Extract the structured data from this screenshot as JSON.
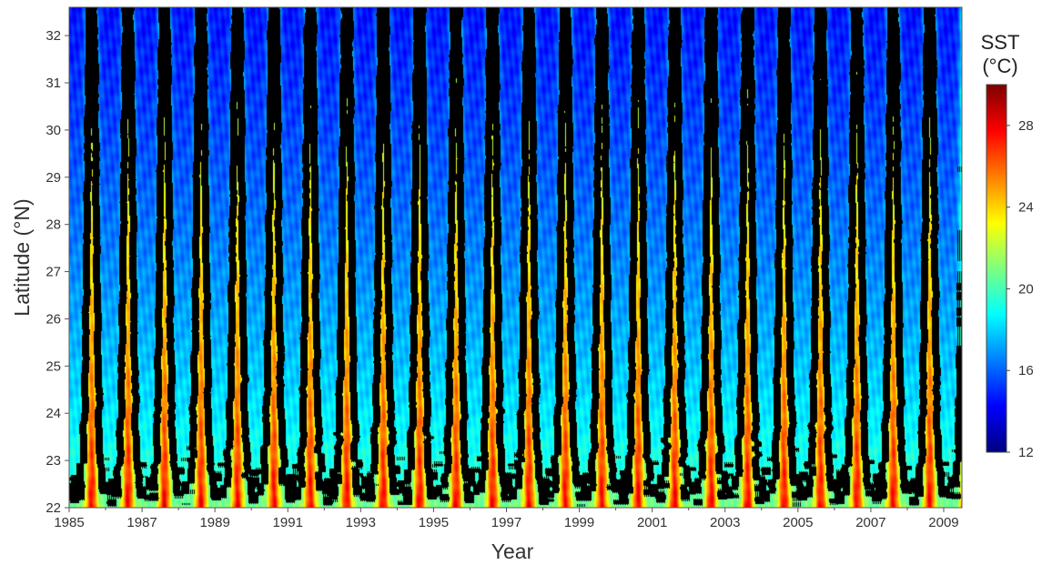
{
  "chart_data": {
    "type": "heatmap",
    "xlabel": "Year",
    "ylabel": "Latitude (°N)",
    "xlim": [
      1985,
      2009.5
    ],
    "ylim": [
      22,
      32.6
    ],
    "x_ticks": [
      "1985",
      "1987",
      "1989",
      "1991",
      "1993",
      "1995",
      "1997",
      "1999",
      "2001",
      "2003",
      "2005",
      "2007",
      "2009"
    ],
    "y_ticks": [
      "22",
      "23",
      "24",
      "25",
      "26",
      "27",
      "28",
      "29",
      "30",
      "31",
      "32"
    ],
    "colorbar": {
      "title_line1": "SST",
      "title_line2": "(°C)",
      "range": [
        12,
        30
      ],
      "ticks": [
        "12",
        "16",
        "20",
        "24",
        "28"
      ],
      "colormap": "jet"
    },
    "contour": {
      "level_c": 20,
      "color": "#000000"
    },
    "field_description_values": {
      "summer_peak_sst_south_c": 28,
      "winter_min_sst_south_c": 21,
      "summer_peak_sst_north_c": 21,
      "winter_min_sst_north_c": 14.5,
      "summer_peak_month_fraction": 0.62
    }
  }
}
